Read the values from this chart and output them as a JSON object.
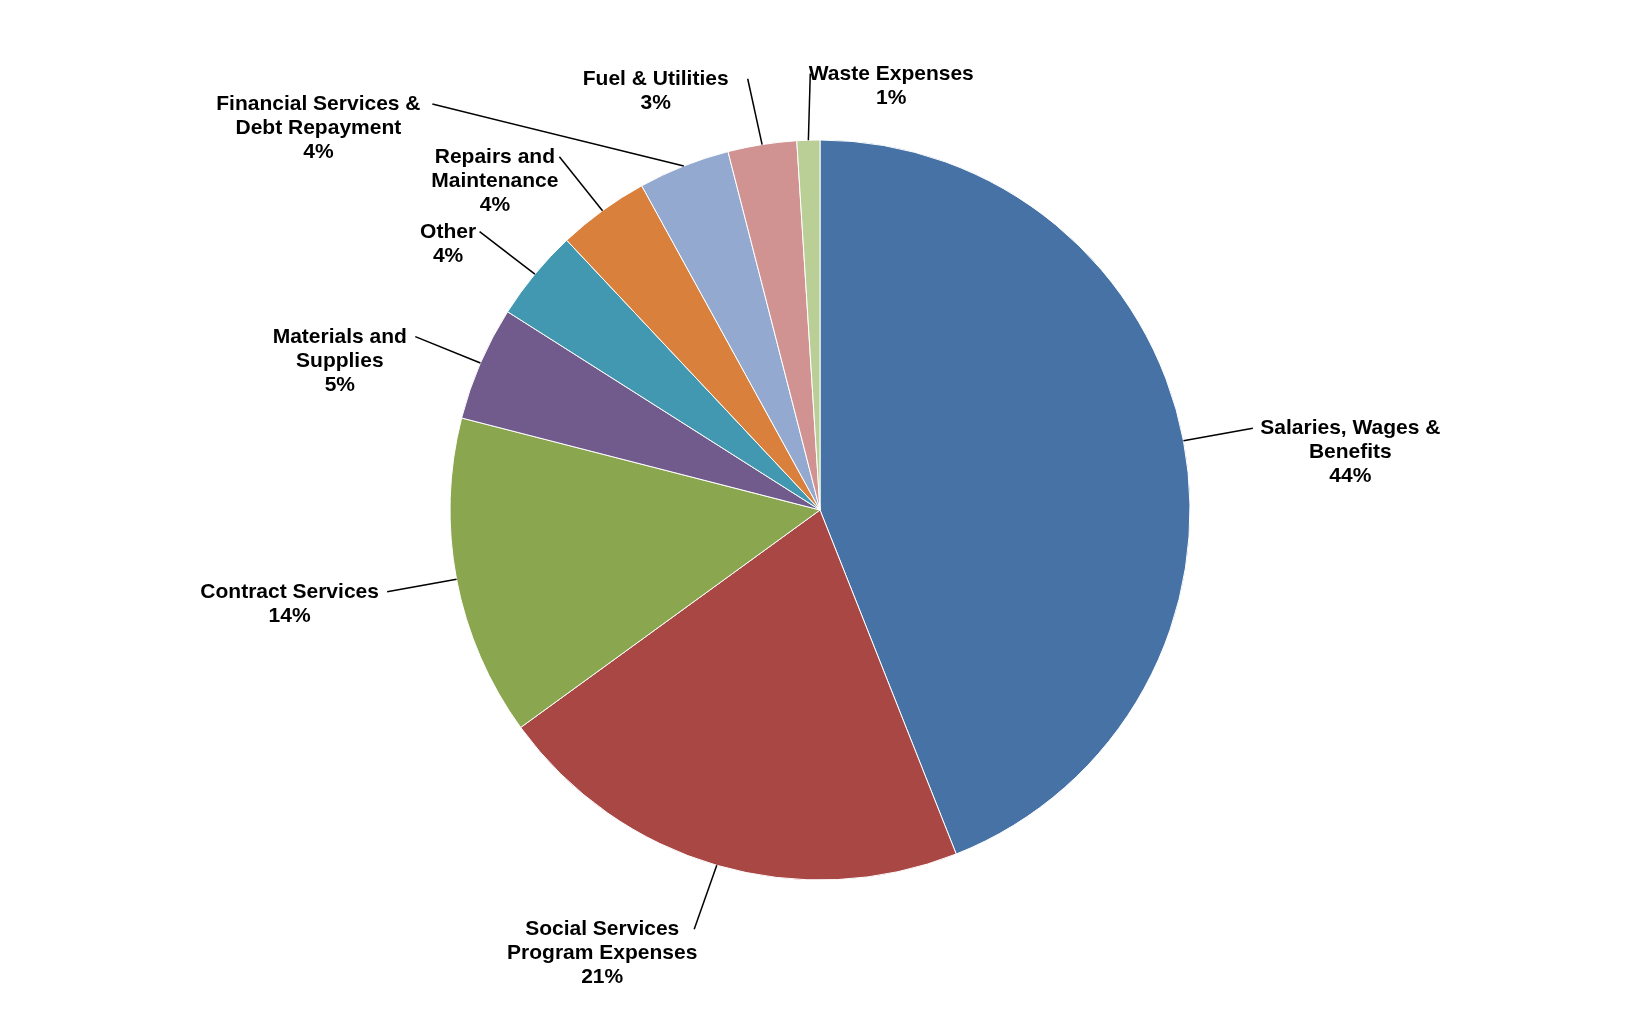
{
  "chart_data": {
    "type": "pie",
    "categories": [
      "Salaries, Wages & Benefits",
      "Social Services Program Expenses",
      "Contract Services",
      "Materials and Supplies",
      "Other",
      "Repairs and Maintenance",
      "Financial Services & Debt Repayment",
      "Fuel & Utilities",
      "Waste Expenses"
    ],
    "values": [
      44,
      21,
      14,
      5,
      4,
      4,
      4,
      3,
      1
    ],
    "value_labels": [
      "44%",
      "21%",
      "14%",
      "5%",
      "4%",
      "4%",
      "4%",
      "3%",
      "1%"
    ],
    "colors": [
      "#4672a6",
      "#a94745",
      "#8aa64f",
      "#715a8c",
      "#4298b0",
      "#d9813c",
      "#93a9cf",
      "#d09392",
      "#b9cf96"
    ]
  }
}
